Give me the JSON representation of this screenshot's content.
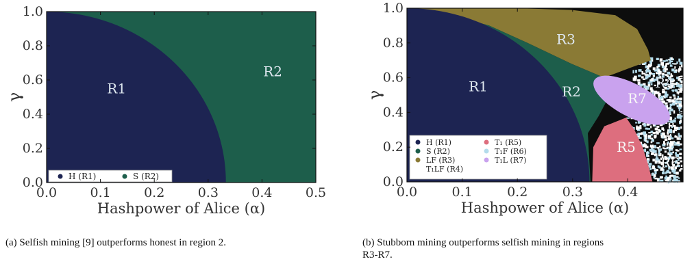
{
  "colors": {
    "honest": "#1d2452",
    "selfish": "#1d5e4b",
    "lf": "#8a7a35",
    "t1lf": "#0d0d0d",
    "t1": "#dd6e7e",
    "t1f": "#b4dcec",
    "t1l": "#c9a2ee",
    "label_light": "#dde6ee"
  },
  "chart_data": [
    {
      "type": "heatmap",
      "xlabel": "Hashpower of Alice (α)",
      "ylabel": "γ",
      "xlim": [
        0.0,
        0.5
      ],
      "ylim": [
        0.0,
        1.0
      ],
      "xticks": [
        "0.0",
        "0.1",
        "0.2",
        "0.3",
        "0.4",
        "0.5"
      ],
      "yticks": [
        "0.0",
        "0.2",
        "0.4",
        "0.6",
        "0.8",
        "1.0"
      ],
      "legend_placement": "lower-left",
      "regions": [
        {
          "id": "R1",
          "label": "R1",
          "legend": "H (R1)",
          "color": "#1d2452",
          "boundary": [
            [
              0.0,
              1.0
            ],
            [
              0.1,
              0.95
            ],
            [
              0.2,
              0.79
            ],
            [
              0.25,
              0.65
            ],
            [
              0.3,
              0.4
            ],
            [
              0.333,
              0.0
            ]
          ],
          "label_at": [
            0.13,
            0.55
          ]
        },
        {
          "id": "R2",
          "label": "R2",
          "legend": "S (R2)",
          "color": "#1d5e4b",
          "label_at": [
            0.42,
            0.65
          ]
        }
      ],
      "caption": "(a) Selfish mining [9] outperforms honest in region 2."
    },
    {
      "type": "heatmap",
      "xlabel": "Hashpower of Alice (α)",
      "ylabel": "γ",
      "xlim": [
        0.0,
        0.5
      ],
      "ylim": [
        0.0,
        1.0
      ],
      "xticks": [
        "0.0",
        "0.1",
        "0.2",
        "0.3",
        "0.4"
      ],
      "yticks": [
        "0.0",
        "0.2",
        "0.4",
        "0.6",
        "0.8",
        "1.0"
      ],
      "legend_placement": "lower-left",
      "regions": [
        {
          "id": "R1",
          "label": "R1",
          "legend": "H (R1)",
          "color": "#1d2452",
          "label_at": [
            0.13,
            0.55
          ]
        },
        {
          "id": "R2",
          "label": "R2",
          "legend": "S (R2)",
          "color": "#1d5e4b",
          "label_at": [
            0.3,
            0.52
          ]
        },
        {
          "id": "R3",
          "label": "R3",
          "legend": "LF (R3)",
          "color": "#8a7a35",
          "label_at": [
            0.29,
            0.82
          ]
        },
        {
          "id": "R4",
          "label": "R4",
          "legend": "T₁LF (R4)",
          "color": "#0d0d0d",
          "label_at": [
            0.47,
            0.57
          ]
        },
        {
          "id": "R5",
          "label": "R5",
          "legend": "T₁ (R5)",
          "color": "#dd6e7e",
          "label_at": [
            0.4,
            0.2
          ]
        },
        {
          "id": "R6",
          "label": "R6",
          "legend": "T₁F (R6)",
          "color": "#b4dcec",
          "label_at": [
            0.48,
            0.11
          ]
        },
        {
          "id": "R7",
          "label": "R7",
          "legend": "T₁L (R7)",
          "color": "#c9a2ee",
          "label_at": [
            0.42,
            0.48
          ]
        }
      ],
      "caption_line1": "(b) Stubborn mining outperforms selfish mining in regions",
      "caption_line2": "R3-R7."
    }
  ]
}
